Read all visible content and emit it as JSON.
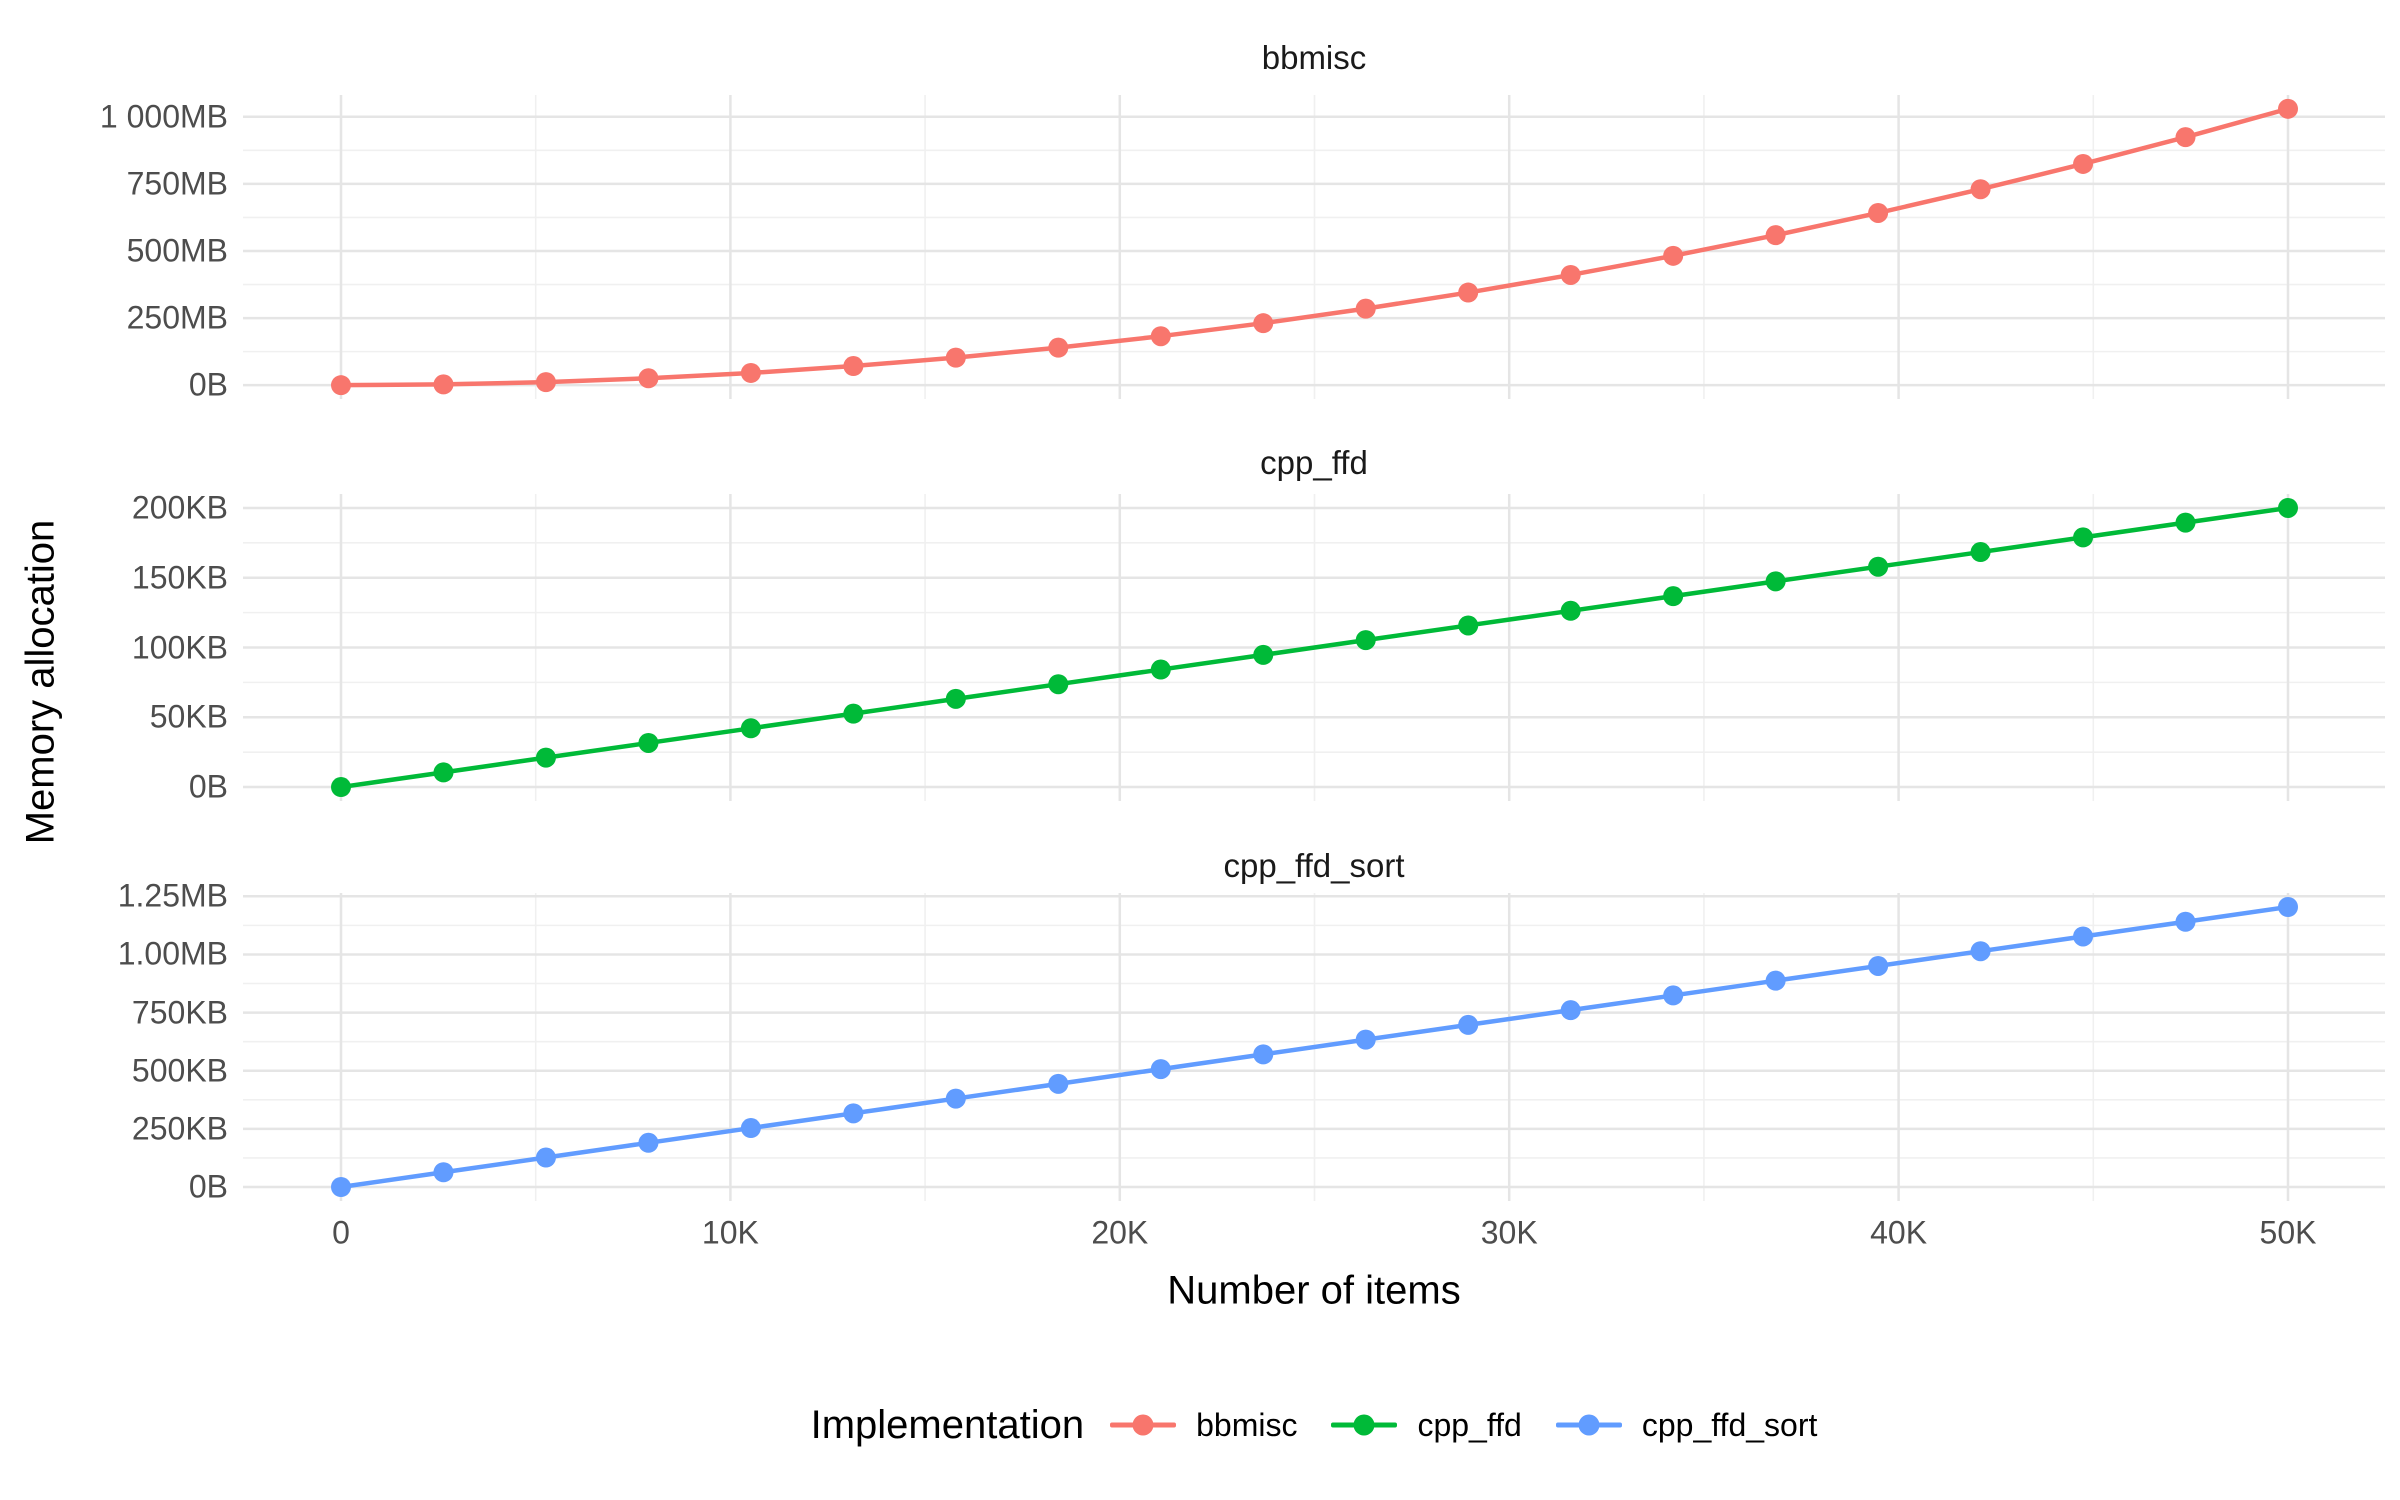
{
  "figure": {
    "y_axis_title": "Memory allocation",
    "x_axis_title": "Number of items",
    "legend_title": "Implementation"
  },
  "chart_data": {
    "type": "line",
    "description": "Three vertically faceted line charts with shared x axis, points on lines, ggplot-style minimal theme",
    "x_label": "Number of items",
    "y_label": "Memory allocation",
    "legend_position": "bottom",
    "grid": "major+minor",
    "x_range": [
      0,
      50000
    ],
    "x": [
      0,
      2632,
      5263,
      7895,
      10526,
      13158,
      15789,
      18421,
      21053,
      23684,
      26316,
      28947,
      31579,
      34211,
      36842,
      39474,
      42105,
      44737,
      47368,
      50000
    ],
    "x_ticks": {
      "values": [
        0,
        10000,
        20000,
        30000,
        40000,
        50000
      ],
      "labels": [
        "0",
        "10K",
        "20K",
        "30K",
        "40K",
        "50K"
      ],
      "minor_values": [
        5000,
        15000,
        25000,
        35000,
        45000
      ]
    },
    "series_legend": [
      {
        "name": "bbmisc",
        "color": "#F8766D"
      },
      {
        "name": "cpp_ffd",
        "color": "#00BA38"
      },
      {
        "name": "cpp_ffd_sort",
        "color": "#619CFF"
      }
    ],
    "panels": [
      {
        "title": "bbmisc",
        "color": "#F8766D",
        "unit": "MB",
        "values": [
          0,
          2.9,
          11.4,
          25.7,
          45.6,
          71.3,
          102.7,
          139.8,
          182.5,
          231.0,
          285.2,
          345.1,
          410.7,
          482.0,
          559.0,
          641.7,
          730.1,
          824.3,
          924.1,
          1029.7
        ],
        "y_ticks": {
          "values": [
            0,
            250,
            500,
            750,
            1000
          ],
          "labels": [
            "0B",
            "250MB",
            "500MB",
            "750MB",
            "1 000MB"
          ]
        }
      },
      {
        "title": "cpp_ffd",
        "color": "#00BA38",
        "unit": "KB",
        "values": [
          0,
          10.5,
          21.1,
          31.6,
          42.1,
          52.6,
          63.2,
          73.7,
          84.2,
          94.7,
          105.3,
          115.8,
          126.3,
          136.8,
          147.4,
          157.9,
          168.4,
          178.9,
          189.5,
          200.0
        ],
        "y_ticks": {
          "values": [
            0,
            50,
            100,
            150,
            200
          ],
          "labels": [
            "0B",
            "50KB",
            "100KB",
            "150KB",
            "200KB"
          ]
        }
      },
      {
        "title": "cpp_ffd_sort",
        "color": "#619CFF",
        "unit": "KB",
        "values": [
          0,
          63.4,
          126.7,
          190.1,
          253.5,
          316.8,
          380.2,
          443.6,
          506.9,
          570.3,
          633.7,
          697.1,
          760.4,
          823.8,
          887.2,
          950.5,
          1013.9,
          1077.3,
          1140.6,
          1204.0
        ],
        "y_ticks": {
          "values": [
            0,
            250,
            500,
            750,
            1000,
            1250
          ],
          "labels": [
            "0B",
            "250KB",
            "500KB",
            "750KB",
            "1.00MB",
            "1.25MB"
          ]
        }
      }
    ],
    "style": {
      "background": "#FFFFFF",
      "grid_major_color": "#E5E5E5",
      "grid_minor_color": "#F0F0F0",
      "tick_text_color": "#4D4D4D",
      "title_text_color": "#000000"
    }
  }
}
